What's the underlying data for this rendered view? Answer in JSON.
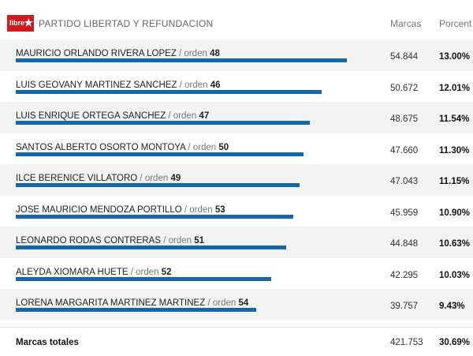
{
  "header": {
    "logo_text": "libre",
    "party": "PARTIDO LIBERTAD Y REFUNDACION",
    "col_votes": "Marcas",
    "col_pct": "Porcent"
  },
  "accent": "#1467a8",
  "logo_color": "#d11a1f",
  "order_sep": " / orden ",
  "rows": [
    {
      "name": "MAURICIO ORLANDO RIVERA LOPEZ",
      "order": "48",
      "votes": "54.844",
      "pct": "13.00%",
      "share": 13.0
    },
    {
      "name": "LUIS GEOVANY MARTINEZ SANCHEZ",
      "order": "46",
      "votes": "50.672",
      "pct": "12.01%",
      "share": 12.01
    },
    {
      "name": "LUIS ENRIQUE ORTEGA SANCHEZ",
      "order": "47",
      "votes": "48.675",
      "pct": "11.54%",
      "share": 11.54
    },
    {
      "name": "SANTOS ALBERTO OSORTO MONTOYA",
      "order": "50",
      "votes": "47.660",
      "pct": "11.30%",
      "share": 11.3
    },
    {
      "name": "ILCE BERENICE VILLATORO",
      "order": "49",
      "votes": "47.043",
      "pct": "11.15%",
      "share": 11.15
    },
    {
      "name": "JOSE MAURICIO MENDOZA PORTILLO",
      "order": "53",
      "votes": "45.959",
      "pct": "10.90%",
      "share": 10.9
    },
    {
      "name": "LEONARDO RODAS CONTRERAS",
      "order": "51",
      "votes": "44.848",
      "pct": "10.63%",
      "share": 10.63
    },
    {
      "name": "ALEYDA XIOMARA HUETE",
      "order": "52",
      "votes": "42.295",
      "pct": "10.03%",
      "share": 10.03
    },
    {
      "name": "LORENA MARGARITA MARTINEZ MARTINEZ",
      "order": "54",
      "votes": "39.757",
      "pct": "9.43%",
      "share": 9.43
    }
  ],
  "total": {
    "label": "Marcas totales",
    "votes": "421.753",
    "pct": "30.69%"
  }
}
